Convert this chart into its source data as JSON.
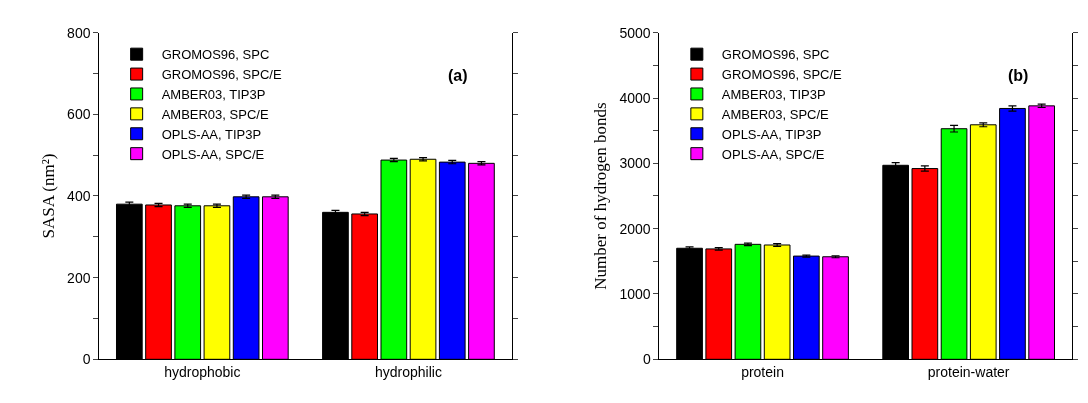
{
  "chart_data": [
    {
      "type": "bar",
      "ylabel": "SASA (nm²)",
      "categories": [
        "hydrophobic",
        "hydrophilic"
      ],
      "ylim": [
        0,
        800
      ],
      "yticks": [
        0,
        {
          "value": 100,
          "label": null
        },
        200,
        {
          "value": 300,
          "label": null
        },
        400,
        {
          "value": 500,
          "label": null
        },
        600,
        {
          "value": 700,
          "label": null
        },
        800
      ],
      "legend": "top left",
      "annotations": [
        "(a)"
      ],
      "series": [
        {
          "name": "GROMOS96, SPC",
          "color": "#000000",
          "values": [
            380,
            360
          ],
          "errors": [
            5,
            5
          ]
        },
        {
          "name": "GROMOS96, SPC/E",
          "color": "#ff0000",
          "values": [
            378,
            356
          ],
          "errors": [
            4,
            4
          ]
        },
        {
          "name": "AMBER03, TIP3P",
          "color": "#00ff00",
          "values": [
            376,
            488
          ],
          "errors": [
            4,
            4
          ]
        },
        {
          "name": "AMBER03, SPC/E",
          "color": "#ffff00",
          "values": [
            376,
            490
          ],
          "errors": [
            4,
            4
          ]
        },
        {
          "name": "OPLS-AA, TIP3P",
          "color": "#0000ff",
          "values": [
            398,
            483
          ],
          "errors": [
            4,
            4
          ]
        },
        {
          "name": "OPLS-AA, SPC/E",
          "color": "#ff00ff",
          "values": [
            398,
            480
          ],
          "errors": [
            4,
            4
          ]
        }
      ]
    },
    {
      "type": "bar",
      "ylabel": "Number of hydrogen bonds",
      "categories": [
        "protein",
        "protein-water"
      ],
      "ylim": [
        0,
        5000
      ],
      "yticks": [
        0,
        {
          "value": 500,
          "label": null
        },
        1000,
        {
          "value": 1500,
          "label": null
        },
        2000,
        {
          "value": 2500,
          "label": null
        },
        3000,
        {
          "value": 3500,
          "label": null
        },
        4000,
        {
          "value": 4500,
          "label": null
        },
        5000
      ],
      "legend": "top left",
      "annotations": [
        "(b)"
      ],
      "series": [
        {
          "name": "GROMOS96, SPC",
          "color": "#000000",
          "values": [
            1700,
            2970
          ],
          "errors": [
            20,
            40
          ]
        },
        {
          "name": "GROMOS96, SPC/E",
          "color": "#ff0000",
          "values": [
            1690,
            2920
          ],
          "errors": [
            20,
            40
          ]
        },
        {
          "name": "AMBER03, TIP3P",
          "color": "#00ff00",
          "values": [
            1760,
            3530
          ],
          "errors": [
            20,
            50
          ]
        },
        {
          "name": "AMBER03, SPC/E",
          "color": "#ffff00",
          "values": [
            1750,
            3590
          ],
          "errors": [
            20,
            30
          ]
        },
        {
          "name": "OPLS-AA, TIP3P",
          "color": "#0000ff",
          "values": [
            1580,
            3840
          ],
          "errors": [
            15,
            40
          ]
        },
        {
          "name": "OPLS-AA, SPC/E",
          "color": "#ff00ff",
          "values": [
            1570,
            3880
          ],
          "errors": [
            15,
            25
          ]
        }
      ]
    }
  ]
}
